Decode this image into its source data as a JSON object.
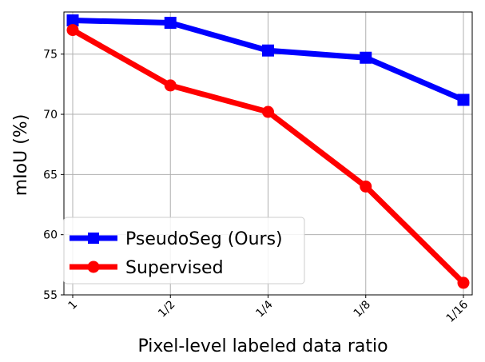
{
  "chart_data": {
    "type": "line",
    "title": "",
    "xlabel": "Pixel-level labeled data ratio",
    "ylabel": "mIoU (%)",
    "categories": [
      "1",
      "1/2",
      "1/4",
      "1/8",
      "1/16"
    ],
    "x": [
      1,
      0.5,
      0.25,
      0.125,
      0.0625
    ],
    "x_scale": "log2-reversed",
    "ylim": [
      55,
      78.5
    ],
    "yticks": [
      55,
      60,
      65,
      70,
      75
    ],
    "grid": true,
    "legend_position": "lower-left",
    "series": [
      {
        "name": "PseudoSeg (Ours)",
        "values": [
          77.8,
          77.6,
          75.3,
          74.7,
          71.2
        ],
        "color": "#0000ff",
        "marker": "square"
      },
      {
        "name": "Supervised",
        "values": [
          77.0,
          72.4,
          70.2,
          64.0,
          56.0
        ],
        "color": "#ff0000",
        "marker": "circle"
      }
    ]
  }
}
